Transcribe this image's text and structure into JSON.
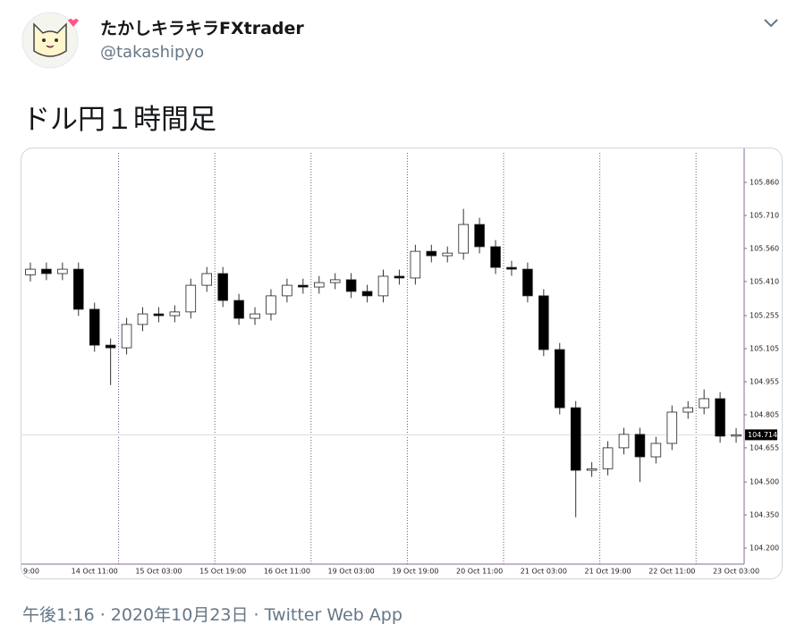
{
  "header": {
    "name": "たかしキラキラFXtrader",
    "handle": "@takashipyo"
  },
  "tweet": {
    "text": "ドル円１時間足"
  },
  "chart_data": {
    "type": "candlestick",
    "categories": [
      "9:00",
      null,
      null,
      null,
      "14 Oct 11:00",
      null,
      null,
      null,
      "15 Oct 03:00",
      null,
      null,
      null,
      "15 Oct 19:00",
      null,
      null,
      null,
      "16 Oct 11:00",
      null,
      null,
      null,
      "19 Oct 03:00",
      null,
      null,
      null,
      "19 Oct 19:00",
      null,
      null,
      null,
      "20 Oct 11:00",
      null,
      null,
      null,
      "21 Oct 03:00",
      null,
      null,
      null,
      "21 Oct 19:00",
      null,
      null,
      null,
      "22 Oct 11:00",
      null,
      null,
      null,
      "23 Oct 03:00"
    ],
    "open": [
      105.44,
      105.466,
      105.446,
      105.466,
      105.284,
      105.121,
      105.109,
      105.215,
      105.263,
      105.255,
      105.272,
      105.393,
      105.446,
      105.324,
      105.243,
      105.263,
      105.345,
      105.393,
      105.385,
      105.405,
      105.418,
      105.365,
      105.345,
      105.434,
      105.426,
      105.547,
      105.527,
      105.539,
      105.669,
      105.568,
      105.474,
      105.466,
      105.345,
      105.101,
      104.837,
      104.553,
      104.56,
      104.655,
      104.716,
      104.614,
      104.675,
      104.817,
      104.837,
      104.878,
      104.708
    ],
    "high": [
      105.496,
      105.496,
      105.496,
      105.496,
      105.314,
      105.151,
      105.245,
      105.293,
      105.293,
      105.302,
      105.423,
      105.476,
      105.476,
      105.354,
      105.293,
      105.375,
      105.423,
      105.423,
      105.435,
      105.448,
      105.448,
      105.395,
      105.464,
      105.464,
      105.577,
      105.577,
      105.569,
      105.74,
      105.699,
      105.598,
      105.504,
      105.496,
      105.375,
      105.131,
      104.867,
      104.59,
      104.685,
      104.746,
      104.746,
      104.705,
      104.847,
      104.867,
      104.92,
      104.908,
      104.744
    ],
    "low": [
      105.41,
      105.416,
      105.416,
      105.254,
      105.091,
      104.94,
      105.079,
      105.185,
      105.225,
      105.225,
      105.242,
      105.363,
      105.294,
      105.213,
      105.213,
      105.233,
      105.315,
      105.355,
      105.355,
      105.375,
      105.335,
      105.315,
      105.315,
      105.396,
      105.396,
      105.497,
      105.497,
      105.509,
      105.538,
      105.444,
      105.436,
      105.315,
      105.071,
      104.807,
      104.34,
      104.523,
      104.53,
      104.625,
      104.5,
      104.584,
      104.645,
      104.787,
      104.807,
      104.678,
      104.678
    ],
    "close": [
      105.466,
      105.446,
      105.466,
      105.284,
      105.121,
      105.109,
      105.215,
      105.263,
      105.255,
      105.272,
      105.393,
      105.446,
      105.324,
      105.243,
      105.263,
      105.345,
      105.393,
      105.385,
      105.405,
      105.418,
      105.365,
      105.345,
      105.434,
      105.426,
      105.547,
      105.527,
      105.539,
      105.669,
      105.568,
      105.474,
      105.466,
      105.345,
      105.101,
      104.837,
      104.553,
      104.56,
      104.655,
      104.716,
      104.614,
      104.675,
      104.817,
      104.837,
      104.878,
      104.708,
      104.714
    ],
    "up_color": "#ffffff",
    "down_color": "#000000",
    "wick_color": "#333333",
    "last_price": 104.714,
    "ylim": [
      104.127,
      105.994
    ],
    "yticks": [
      {
        "value": 105.86,
        "label": "105.860"
      },
      {
        "value": 105.71,
        "label": "105.710"
      },
      {
        "value": 105.56,
        "label": "105.560"
      },
      {
        "value": 105.41,
        "label": "105.410"
      },
      105.255,
      105.105,
      104.955,
      104.805,
      104.655,
      {
        "value": 104.5,
        "label": "104.500"
      },
      {
        "value": 104.35,
        "label": "104.350"
      },
      {
        "value": 104.2,
        "label": "104.200"
      }
    ]
  },
  "footer": {
    "timestamp": "午後1:16 · 2020年10月23日 · Twitter Web App"
  }
}
